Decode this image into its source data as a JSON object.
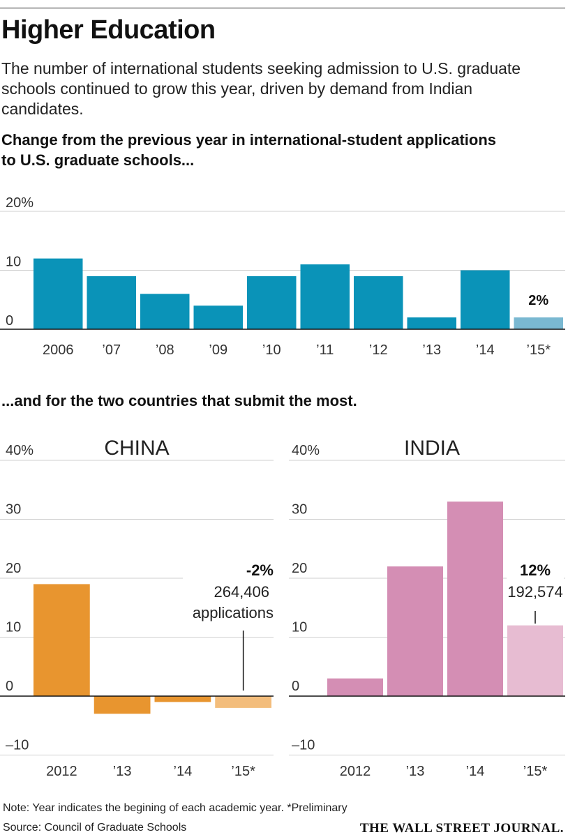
{
  "header": {
    "title": "Higher Education",
    "subtitle": "The number of international students seeking admission to U.S. graduate schools continued to grow this year, driven by demand from Indian candidates."
  },
  "chart_data": [
    {
      "type": "bar",
      "heading_line1": "Change from the previous year in international-student applications",
      "heading_line2": "to U.S. graduate schools...",
      "categories": [
        "2006",
        "’07",
        "’08",
        "’09",
        "’10",
        "’11",
        "’12",
        "’13",
        "’14",
        "’15*"
      ],
      "values": [
        12,
        9,
        6,
        4,
        9,
        11,
        9,
        2,
        10,
        2
      ],
      "highlight_label": "2%",
      "ylim": [
        0,
        20
      ],
      "yticks": [
        "20%",
        "10",
        "0"
      ],
      "colors": {
        "main": "#0a93b8",
        "preliminary": "#7ab8d1"
      }
    },
    {
      "type": "bar",
      "heading": "...and for the two countries that submit the most.",
      "title": "CHINA",
      "categories": [
        "2012",
        "’13",
        "’14",
        "’15*"
      ],
      "values": [
        19,
        -3,
        -1,
        -2
      ],
      "annotation": {
        "value_label": "-2%",
        "count_label": "264,406",
        "unit_label": "applications"
      },
      "ylim": [
        -10,
        40
      ],
      "yticks": [
        "40%",
        "30",
        "20",
        "10",
        "0",
        "–10"
      ],
      "colors": {
        "main": "#e8952f",
        "preliminary": "#f3bd7c"
      }
    },
    {
      "type": "bar",
      "title": "INDIA",
      "categories": [
        "2012",
        "’13",
        "’14",
        "’15*"
      ],
      "values": [
        3,
        22,
        33,
        12
      ],
      "annotation": {
        "value_label": "12%",
        "count_label": "192,574"
      },
      "ylim": [
        -10,
        40
      ],
      "yticks": [
        "40%",
        "30",
        "20",
        "10",
        "0",
        "–10"
      ],
      "colors": {
        "main": "#d48eb4",
        "preliminary": "#e7bcd2"
      }
    }
  ],
  "footer": {
    "note": "Note: Year indicates the begining of each academic year.  *Preliminary",
    "source": "Source: Council of Graduate Schools",
    "brand": "THE WALL STREET JOURNAL."
  }
}
